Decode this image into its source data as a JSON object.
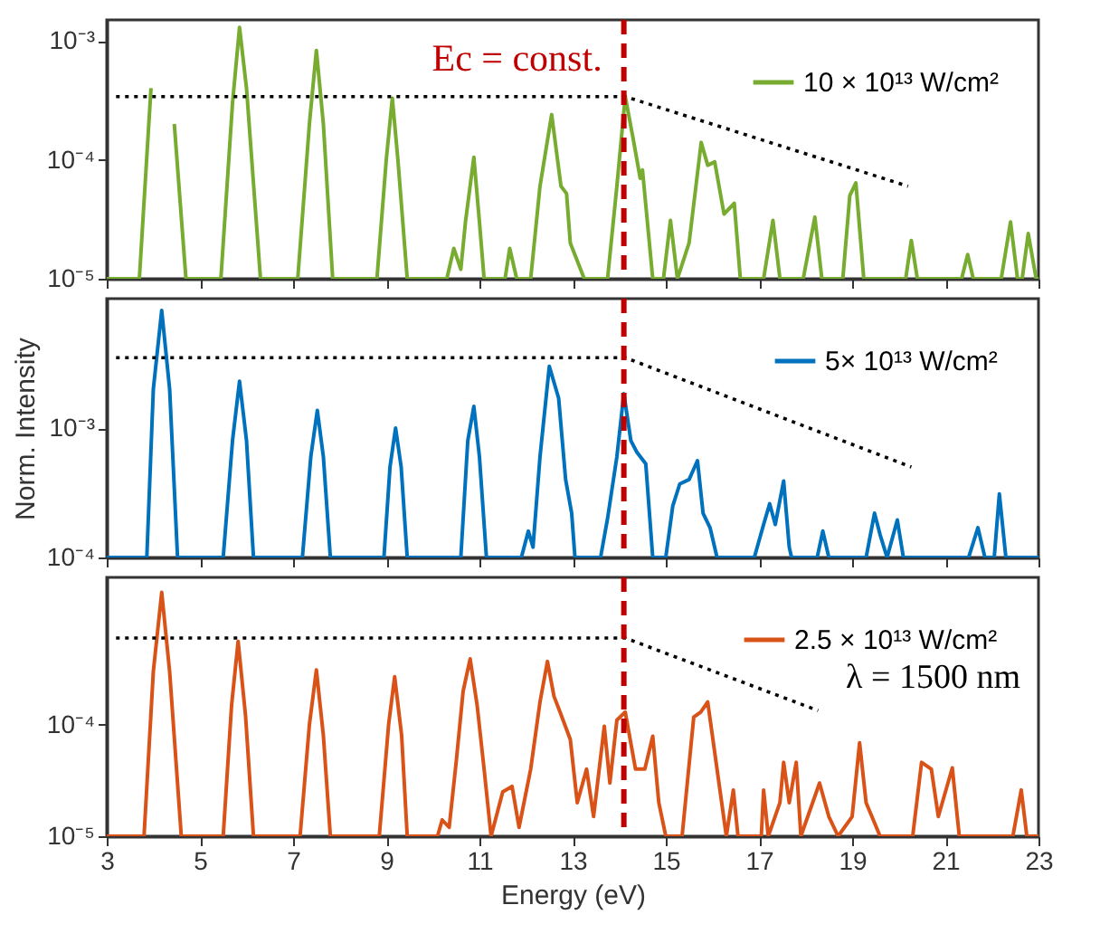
{
  "chart_data": [
    {
      "type": "line",
      "xlim": [
        3,
        23
      ],
      "xticks": [
        3,
        5,
        7,
        9,
        11,
        13,
        15,
        17,
        19,
        21,
        23
      ],
      "ylim": [
        1e-05,
        0.0015
      ],
      "log": "y",
      "tick_labels": "y",
      "legend": "top right",
      "marker": "none",
      "grid": false,
      "yticks": [
        {
          "value": 1e-05,
          "label": "10⁻⁵"
        },
        {
          "value": 0.0001,
          "label": "10⁻⁴"
        },
        {
          "value": 0.001,
          "label": "10⁻³"
        }
      ],
      "ref_lines": [
        {
          "axis": "x",
          "value": 14.1,
          "label": "Ec = const.",
          "color": "#c00000",
          "line_style": "dashed"
        }
      ],
      "series": [
        {
          "name": "10 × 10¹³ W/cm²",
          "color": "#77ac30",
          "x": [
            3,
            3.7,
            3.95,
            4.08,
            4.25,
            4.45,
            4.7,
            5.45,
            5.7,
            5.85,
            6.0,
            6.3,
            7.1,
            7.35,
            7.5,
            7.65,
            7.85,
            8.8,
            9.0,
            9.13,
            9.25,
            9.45,
            10.3,
            10.45,
            10.6,
            10.7,
            10.88,
            11.0,
            11.1,
            11.55,
            11.65,
            11.8,
            12.1,
            12.3,
            12.55,
            12.75,
            12.87,
            12.95,
            13.25,
            13.75,
            13.95,
            14.13,
            14.3,
            14.45,
            14.5,
            14.72,
            14.95,
            15.1,
            15.25,
            15.5,
            15.76,
            15.9,
            16.05,
            16.25,
            16.47,
            16.6,
            17.1,
            17.3,
            17.45,
            17.95,
            18.2,
            18.35,
            18.8,
            18.95,
            19.08,
            19.25,
            20.15,
            20.27,
            20.4,
            21.35,
            21.48,
            21.6,
            22.2,
            22.4,
            22.55,
            22.65,
            22.78,
            22.95,
            23
          ],
          "values": [
            1e-05,
            1e-05,
            0.0004,
            null,
            null,
            0.0002,
            1e-05,
            1e-05,
            0.0003,
            0.0013,
            0.0004,
            1e-05,
            1e-05,
            0.0002,
            0.00083,
            0.0002,
            1e-05,
            1e-05,
            0.0001,
            0.00033,
            0.0001,
            1e-05,
            1e-05,
            1.8e-05,
            1.2e-05,
            3e-05,
            0.000105,
            3e-05,
            1e-05,
            1e-05,
            1.8e-05,
            1e-05,
            1e-05,
            6e-05,
            0.00024,
            6e-05,
            5.2e-05,
            2e-05,
            1e-05,
            1e-05,
            6e-05,
            0.00034,
            0.00015,
            7e-05,
            8.2e-05,
            1e-05,
            1e-05,
            3.1e-05,
            1e-05,
            2e-05,
            0.00014,
            9e-05,
            9.6e-05,
            3.5e-05,
            4.3e-05,
            1e-05,
            1e-05,
            3.1e-05,
            1e-05,
            1e-05,
            3.3e-05,
            1e-05,
            1e-05,
            5e-05,
            6.4e-05,
            1e-05,
            1e-05,
            2.1e-05,
            1e-05,
            1e-05,
            1.6e-05,
            1e-05,
            1e-05,
            3e-05,
            1e-05,
            1e-05,
            2.4e-05,
            1e-05,
            1e-05
          ]
        },
        {
          "type": "line",
          "color": "#000000",
          "line_style": "dotted",
          "x": [
            3.2,
            14.13,
            20.2
          ],
          "values": [
            0.00034,
            0.00034,
            6e-05
          ]
        }
      ]
    },
    {
      "type": "line",
      "xlim": [
        3,
        23
      ],
      "xticks": [
        3,
        5,
        7,
        9,
        11,
        13,
        15,
        17,
        19,
        21,
        23
      ],
      "ylim": [
        0.0001,
        0.01
      ],
      "log": "y",
      "tick_labels": "y",
      "legend": "top right",
      "marker": "none",
      "grid": false,
      "ylabel": "Norm. Intensity",
      "yticks": [
        {
          "value": 0.0001,
          "label": "10⁻⁴"
        },
        {
          "value": 0.001,
          "label": "10⁻³"
        }
      ],
      "ref_lines": [
        {
          "axis": "x",
          "value": 14.1,
          "color": "#c00000",
          "line_style": "dashed"
        }
      ],
      "series": [
        {
          "name": "5× 10¹³ W/cm²",
          "color": "#0072bd",
          "x": [
            3,
            3.86,
            4.0,
            4.18,
            4.35,
            4.52,
            5.5,
            5.7,
            5.85,
            6.0,
            6.15,
            7.2,
            7.38,
            7.52,
            7.65,
            7.8,
            8.95,
            9.08,
            9.2,
            9.32,
            9.45,
            10.6,
            10.75,
            10.88,
            11.0,
            11.15,
            11.9,
            12.05,
            12.15,
            12.3,
            12.5,
            12.7,
            12.85,
            12.98,
            13.05,
            13.6,
            13.75,
            13.95,
            14.1,
            14.25,
            14.38,
            14.57,
            14.72,
            15.0,
            15.15,
            15.3,
            15.5,
            15.68,
            15.8,
            15.95,
            16.1,
            16.9,
            17.1,
            17.23,
            17.35,
            17.53,
            17.65,
            17.7,
            18.25,
            18.37,
            18.5,
            19.3,
            19.48,
            19.6,
            19.75,
            19.97,
            20.1,
            21.5,
            21.7,
            21.85,
            22.05,
            22.16,
            22.3,
            23
          ],
          "values": [
            0.0001,
            0.0001,
            0.002,
            0.0081,
            0.002,
            0.0001,
            0.0001,
            0.0008,
            0.0023,
            0.0008,
            0.0001,
            0.0001,
            0.0006,
            0.00137,
            0.0006,
            0.0001,
            0.0001,
            0.0005,
            0.001,
            0.0005,
            0.0001,
            0.0001,
            0.0008,
            0.00147,
            0.0006,
            0.0001,
            0.0001,
            0.00016,
            0.00012,
            0.0006,
            0.003,
            0.0017,
            0.0004,
            0.00022,
            0.0001,
            0.0001,
            0.0002,
            0.0006,
            0.00184,
            0.0008,
            0.00065,
            0.00053,
            0.0001,
            0.0001,
            0.00025,
            0.00037,
            0.0004,
            0.00056,
            0.00022,
            0.00017,
            0.0001,
            0.0001,
            0.00018,
            0.00026,
            0.00018,
            0.00039,
            0.00012,
            0.0001,
            0.0001,
            0.00016,
            0.0001,
            0.0001,
            0.00022,
            0.00015,
            0.0001,
            0.000195,
            0.0001,
            0.0001,
            0.00017,
            0.0001,
            0.0001,
            0.00031,
            0.0001,
            0.0001
          ]
        },
        {
          "type": "line",
          "color": "#000000",
          "line_style": "dotted",
          "x": [
            3.2,
            14.13,
            20.27
          ],
          "values": [
            0.0035,
            0.0035,
            0.0005
          ]
        }
      ]
    },
    {
      "type": "line",
      "xlim": [
        3,
        23
      ],
      "xticks": [
        3,
        5,
        7,
        9,
        11,
        13,
        15,
        17,
        19,
        21,
        23
      ],
      "ylim": [
        1e-05,
        0.0021
      ],
      "log": "y",
      "legend": "top right",
      "marker": "none",
      "grid": false,
      "xlabel": "Energy (eV)",
      "yticks": [
        {
          "value": 1e-05,
          "label": "10⁻⁵"
        },
        {
          "value": 0.0001,
          "label": "10⁻⁴"
        }
      ],
      "ref_lines": [
        {
          "axis": "x",
          "value": 14.1,
          "color": "#c00000",
          "line_style": "dashed"
        }
      ],
      "annotations": [
        "λ = 1500 nm"
      ],
      "series": [
        {
          "name": "2.5 × 10¹³ W/cm²",
          "color": "#d95319",
          "x": [
            3,
            3.8,
            4.0,
            4.18,
            4.35,
            4.6,
            5.5,
            5.68,
            5.82,
            5.98,
            6.15,
            7.15,
            7.35,
            7.5,
            7.65,
            7.8,
            8.85,
            9.05,
            9.18,
            9.33,
            9.45,
            10.1,
            10.2,
            10.35,
            10.5,
            10.65,
            10.8,
            10.95,
            11.1,
            11.25,
            11.5,
            11.7,
            11.85,
            12.1,
            12.3,
            12.46,
            12.6,
            12.73,
            12.95,
            13.1,
            13.3,
            13.45,
            13.68,
            13.8,
            13.95,
            14.13,
            14.35,
            14.55,
            14.72,
            14.85,
            15.0,
            15.35,
            15.6,
            15.75,
            15.9,
            16.1,
            16.3,
            16.45,
            16.55,
            17.05,
            17.1,
            17.2,
            17.45,
            17.53,
            17.65,
            17.8,
            17.9,
            18.3,
            18.5,
            18.7,
            19.0,
            19.16,
            19.3,
            19.6,
            20.3,
            20.49,
            20.7,
            20.85,
            21.15,
            21.3,
            22.45,
            22.63,
            22.75,
            23
          ],
          "values": [
            1e-05,
            1e-05,
            0.0003,
            0.00154,
            0.0003,
            1e-05,
            1e-05,
            0.00015,
            0.00056,
            0.00012,
            1e-05,
            1e-05,
            0.0001,
            0.00031,
            8e-05,
            1e-05,
            1e-05,
            0.0001,
            0.00027,
            8e-05,
            1e-05,
            1e-05,
            1.4e-05,
            1.2e-05,
            4.6e-05,
            0.0002,
            0.00039,
            0.00015,
            4e-05,
            1e-05,
            2.5e-05,
            2.8e-05,
            1.2e-05,
            4e-05,
            0.00016,
            0.00037,
            0.00018,
            0.00013,
            7.4e-05,
            2e-05,
            4e-05,
            1.5e-05,
            9.7e-05,
            3e-05,
            0.00011,
            0.00013,
            4e-05,
            4e-05,
            7.9e-05,
            2e-05,
            1e-05,
            1e-05,
            0.000117,
            0.00013,
            0.00016,
            4e-05,
            1e-05,
            2.6e-05,
            1e-05,
            1e-05,
            2.6e-05,
            1e-05,
            2e-05,
            4.6e-05,
            2e-05,
            4.6e-05,
            1e-05,
            3e-05,
            1.5e-05,
            1e-05,
            1.5e-05,
            6.9e-05,
            2e-05,
            1e-05,
            1e-05,
            4.6e-05,
            4e-05,
            1.5e-05,
            4.1e-05,
            1e-05,
            1e-05,
            2.6e-05,
            1e-05,
            1e-05
          ]
        },
        {
          "type": "line",
          "color": "#000000",
          "line_style": "dotted",
          "x": [
            3.2,
            14.13,
            18.27
          ],
          "values": [
            0.0006,
            0.0006,
            0.000134
          ]
        }
      ]
    }
  ]
}
